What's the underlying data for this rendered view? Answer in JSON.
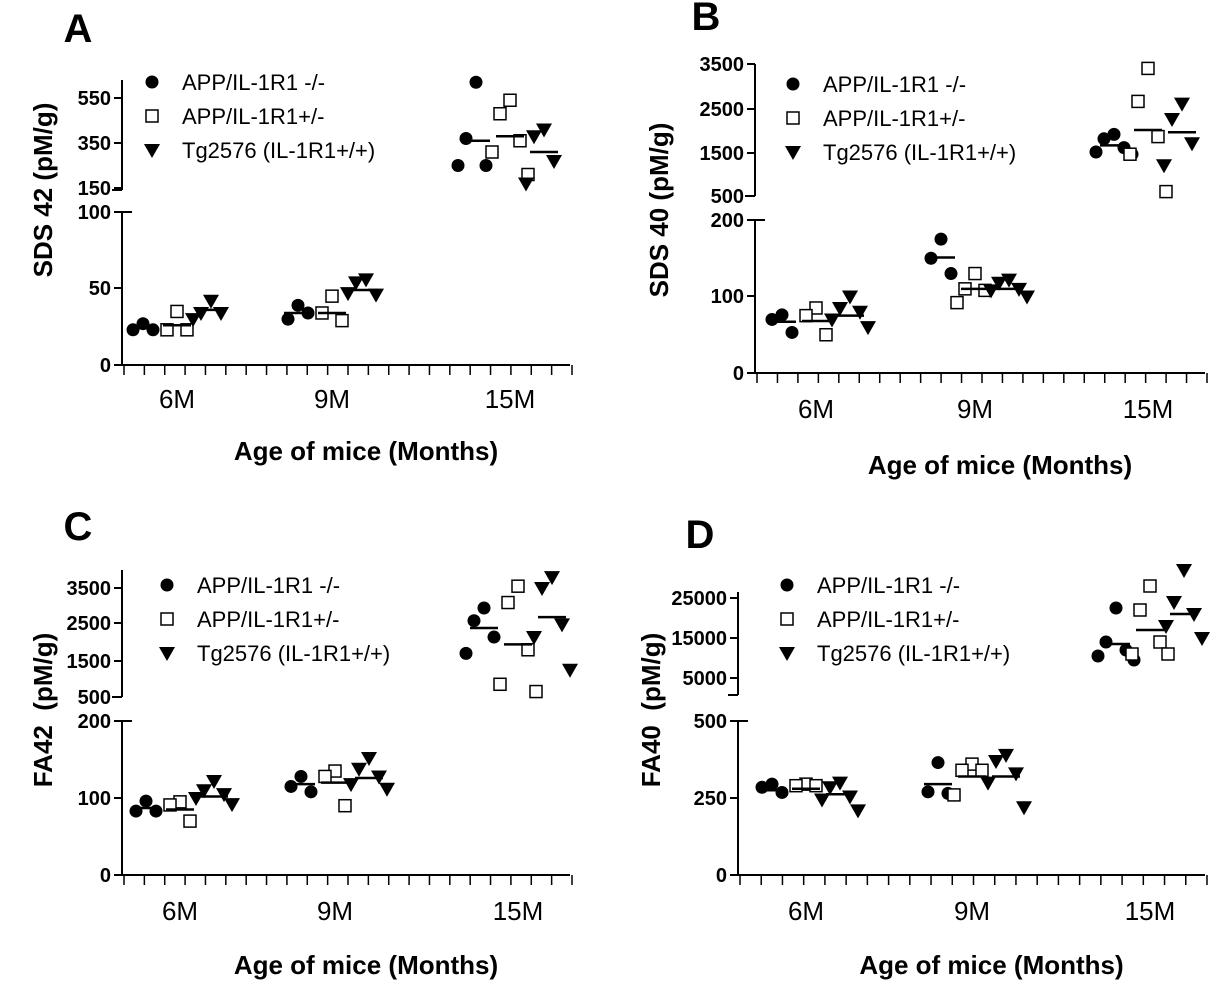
{
  "chart_data": [
    {
      "panel": "A",
      "type": "scatter",
      "ylabel": "SDS 42 (pM/g)",
      "xlabel": "Age of mice (Months)",
      "categories": [
        "6M",
        "9M",
        "15M"
      ],
      "y_axis": {
        "broken": true,
        "lower": {
          "range": [
            0,
            100
          ],
          "ticks": [
            "0",
            "50",
            "100"
          ]
        },
        "upper": {
          "range": [
            150,
            650
          ],
          "ticks": [
            "150",
            "350",
            "550"
          ]
        }
      },
      "legend": {
        "position": "top-left",
        "entries": [
          "APP/IL-1R1 -/-",
          "APP/IL-1R1+/-",
          "Tg2576 (IL-1R1+/+)"
        ]
      },
      "series": [
        {
          "name": "APP/IL-1R1 -/-",
          "marker": "filled-circle",
          "points": [
            {
              "g": "6M",
              "v": [
                27,
                23,
                23
              ],
              "mean": 24
            },
            {
              "g": "9M",
              "v": [
                39,
                30,
                34
              ],
              "mean": 34
            },
            {
              "g": "15M",
              "v": [
                620,
                370,
                250,
                250
              ],
              "mean": 360
            }
          ]
        },
        {
          "name": "APP/IL-1R1+/-",
          "marker": "open-square",
          "points": [
            {
              "g": "6M",
              "v": [
                35,
                23,
                23
              ],
              "mean": 26
            },
            {
              "g": "9M",
              "v": [
                45,
                34,
                29
              ],
              "mean": 34
            },
            {
              "g": "15M",
              "v": [
                540,
                480,
                360,
                310,
                210
              ],
              "mean": 380
            }
          ]
        },
        {
          "name": "Tg2576 (IL-1R1+/+)",
          "marker": "filled-triangle-down",
          "points": [
            {
              "g": "6M",
              "v": [
                42,
                34,
                34,
                30
              ],
              "mean": 36
            },
            {
              "g": "9M",
              "v": [
                56,
                54,
                46,
                47
              ],
              "mean": 49
            },
            {
              "g": "15M",
              "v": [
                410,
                380,
                270,
                170
              ],
              "mean": 310
            }
          ]
        }
      ]
    },
    {
      "panel": "B",
      "type": "scatter",
      "ylabel": "SDS 40 (pM/g)",
      "xlabel": "Age of mice (Months)",
      "categories": [
        "6M",
        "9M",
        "15M"
      ],
      "y_axis": {
        "broken": true,
        "lower": {
          "range": [
            0,
            200
          ],
          "ticks": [
            "0",
            "100",
            "200"
          ]
        },
        "upper": {
          "range": [
            500,
            3500
          ],
          "ticks": [
            "500",
            "1500",
            "2500",
            "3500"
          ]
        }
      },
      "legend": {
        "position": "top-left",
        "entries": [
          "APP/IL-1R1 -/-",
          "APP/IL-1R1+/-",
          "Tg2576 (IL-1R1+/+)"
        ]
      },
      "series": [
        {
          "name": "APP/IL-1R1 -/-",
          "marker": "filled-circle",
          "points": [
            {
              "g": "6M",
              "v": [
                76,
                70,
                53
              ],
              "mean": 67
            },
            {
              "g": "9M",
              "v": [
                175,
                150,
                130
              ],
              "mean": 151
            },
            {
              "g": "15M",
              "v": [
                1900,
                1800,
                1600,
                1500,
                1450
              ],
              "mean": 1650
            }
          ]
        },
        {
          "name": "APP/IL-1R1+/-",
          "marker": "open-square",
          "points": [
            {
              "g": "6M",
              "v": [
                85,
                75,
                50
              ],
              "mean": 68
            },
            {
              "g": "9M",
              "v": [
                130,
                110,
                108,
                92
              ],
              "mean": 110
            },
            {
              "g": "15M",
              "v": [
                3400,
                2650,
                1850,
                1450,
                600
              ],
              "mean": 2000
            }
          ]
        },
        {
          "name": "Tg2576 (IL-1R1+/+)",
          "marker": "filled-triangle-down",
          "points": [
            {
              "g": "6M",
              "v": [
                100,
                85,
                80,
                70,
                60
              ],
              "mean": 75
            },
            {
              "g": "9M",
              "v": [
                122,
                118,
                110,
                108,
                100
              ],
              "mean": 110
            },
            {
              "g": "15M",
              "v": [
                2600,
                2250,
                1700,
                1200
              ],
              "mean": 1950
            }
          ]
        }
      ]
    },
    {
      "panel": "C",
      "type": "scatter",
      "ylabel": "FA42  (pM/g)",
      "xlabel": "Age of mice (Months)",
      "categories": [
        "6M",
        "9M",
        "15M"
      ],
      "y_axis": {
        "broken": true,
        "lower": {
          "range": [
            0,
            200
          ],
          "ticks": [
            "0",
            "100",
            "200"
          ]
        },
        "upper": {
          "range": [
            500,
            4000
          ],
          "ticks": [
            "500",
            "1500",
            "2500",
            "3500"
          ]
        }
      },
      "legend": {
        "position": "top-left",
        "entries": [
          "APP/IL-1R1 -/-",
          "APP/IL-1R1+/-",
          "Tg2576 (IL-1R1+/+)"
        ]
      },
      "series": [
        {
          "name": "APP/IL-1R1 -/-",
          "marker": "filled-circle",
          "points": [
            {
              "g": "6M",
              "v": [
                96,
                83,
                83
              ],
              "mean": 87
            },
            {
              "g": "9M",
              "v": [
                128,
                115,
                108
              ],
              "mean": 118
            },
            {
              "g": "15M",
              "v": [
                2950,
                2600,
                2150,
                1700
              ],
              "mean": 2400
            }
          ]
        },
        {
          "name": "APP/IL-1R1+/-",
          "marker": "open-square",
          "points": [
            {
              "g": "6M",
              "v": [
                95,
                91,
                70
              ],
              "mean": 85
            },
            {
              "g": "9M",
              "v": [
                135,
                128,
                90
              ],
              "mean": 120
            },
            {
              "g": "15M",
              "v": [
                3550,
                3100,
                1800,
                850,
                650
              ],
              "mean": 1950
            }
          ]
        },
        {
          "name": "Tg2576 (IL-1R1+/+)",
          "marker": "filled-triangle-down",
          "points": [
            {
              "g": "6M",
              "v": [
                122,
                110,
                105,
                100,
                92
              ],
              "mean": 102
            },
            {
              "g": "9M",
              "v": [
                152,
                138,
                128,
                118,
                112
              ],
              "mean": 126
            },
            {
              "g": "15M",
              "v": [
                3800,
                3500,
                2500,
                2150,
                1250
              ],
              "mean": 2700
            }
          ]
        }
      ]
    },
    {
      "panel": "D",
      "type": "scatter",
      "ylabel": "FA40  (pM/g)",
      "xlabel": "Age of mice (Months)",
      "categories": [
        "6M",
        "9M",
        "15M"
      ],
      "y_axis": {
        "broken": true,
        "lower": {
          "range": [
            0,
            500
          ],
          "ticks": [
            "0",
            "250",
            "500"
          ]
        },
        "upper": {
          "range": [
            0,
            32000
          ],
          "ticks": [
            "5000",
            "15000",
            "25000"
          ]
        }
      },
      "legend": {
        "position": "top-left",
        "entries": [
          "APP/IL-1R1 -/-",
          "APP/IL-1R1+/-",
          "Tg2576 (IL-1R1+/+)"
        ]
      },
      "series": [
        {
          "name": "APP/IL-1R1 -/-",
          "marker": "filled-circle",
          "points": [
            {
              "g": "6M",
              "v": [
                295,
                285,
                268
              ],
              "mean": 275
            },
            {
              "g": "9M",
              "v": [
                365,
                270,
                265
              ],
              "mean": 295
            },
            {
              "g": "15M",
              "v": [
                22500,
                14000,
                12000,
                10500,
                9500
              ],
              "mean": 13500
            }
          ]
        },
        {
          "name": "APP/IL-1R1+/-",
          "marker": "open-square",
          "points": [
            {
              "g": "6M",
              "v": [
                295,
                290,
                290
              ],
              "mean": 280
            },
            {
              "g": "9M",
              "v": [
                360,
                340,
                340,
                260
              ],
              "mean": 320
            },
            {
              "g": "15M",
              "v": [
                28000,
                22000,
                14000,
                11000,
                11000
              ],
              "mean": 17000
            }
          ]
        },
        {
          "name": "Tg2576 (IL-1R1+/+)",
          "marker": "filled-triangle-down",
          "points": [
            {
              "g": "6M",
              "v": [
                300,
                285,
                255,
                245,
                210
              ],
              "mean": 262
            },
            {
              "g": "9M",
              "v": [
                390,
                370,
                330,
                300,
                220
              ],
              "mean": 320
            },
            {
              "g": "15M",
              "v": [
                32000,
                24000,
                21000,
                18000,
                15000
              ],
              "mean": 21000
            }
          ]
        }
      ]
    }
  ],
  "panels": [
    {
      "letter": "A"
    },
    {
      "letter": "B"
    },
    {
      "letter": "C"
    },
    {
      "letter": "D"
    }
  ]
}
